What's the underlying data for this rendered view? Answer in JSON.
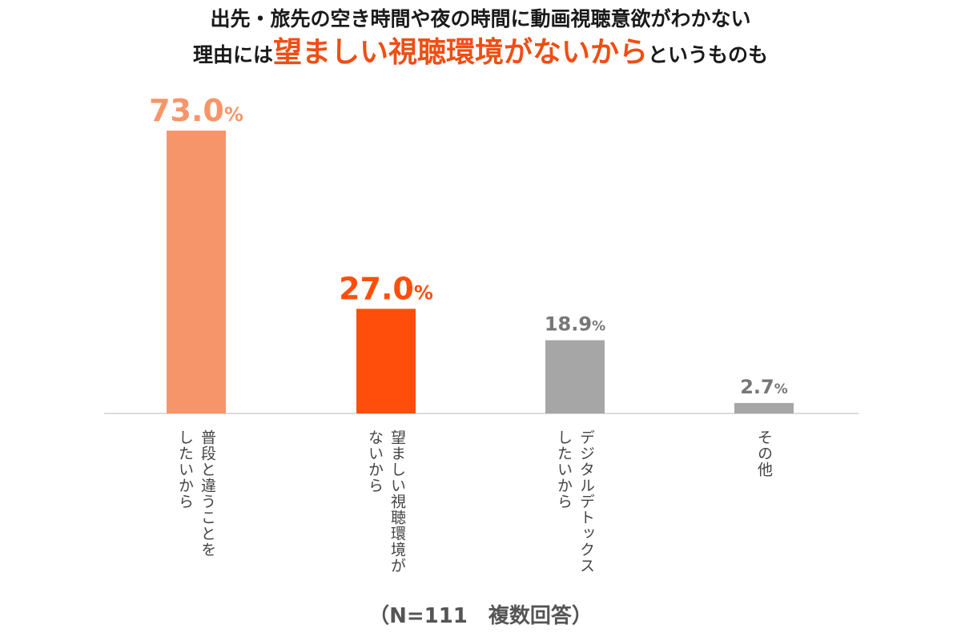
{
  "title": {
    "line1": "出先・旅先の空き時間や夜の時間に動画視聴意欲がわかない",
    "line2_prefix": "理由には",
    "line2_highlight": "望ましい視聴環境がないから",
    "line2_suffix": "というものも"
  },
  "note": "（N=111　複数回答）",
  "colors": {
    "bar1": "#f7956a",
    "bar2": "#ff4e0c",
    "bar_gray": "#a6a6a6",
    "label_gray": "#777777",
    "highlight_text": "#f04e13"
  },
  "chart_data": {
    "type": "bar",
    "unit": "%",
    "ylim": [
      0,
      73
    ],
    "grid": false,
    "legend": "none",
    "categories": [
      [
        "普段と違うことを",
        "したいから"
      ],
      [
        "望ましい視聴環境が",
        "ないから"
      ],
      [
        "デジタルデトックス",
        "したいから"
      ],
      [
        "その他"
      ]
    ],
    "values": [
      73.0,
      27.0,
      18.9,
      2.7
    ],
    "value_labels": [
      "73.0",
      "27.0",
      "18.9",
      "2.7"
    ]
  }
}
